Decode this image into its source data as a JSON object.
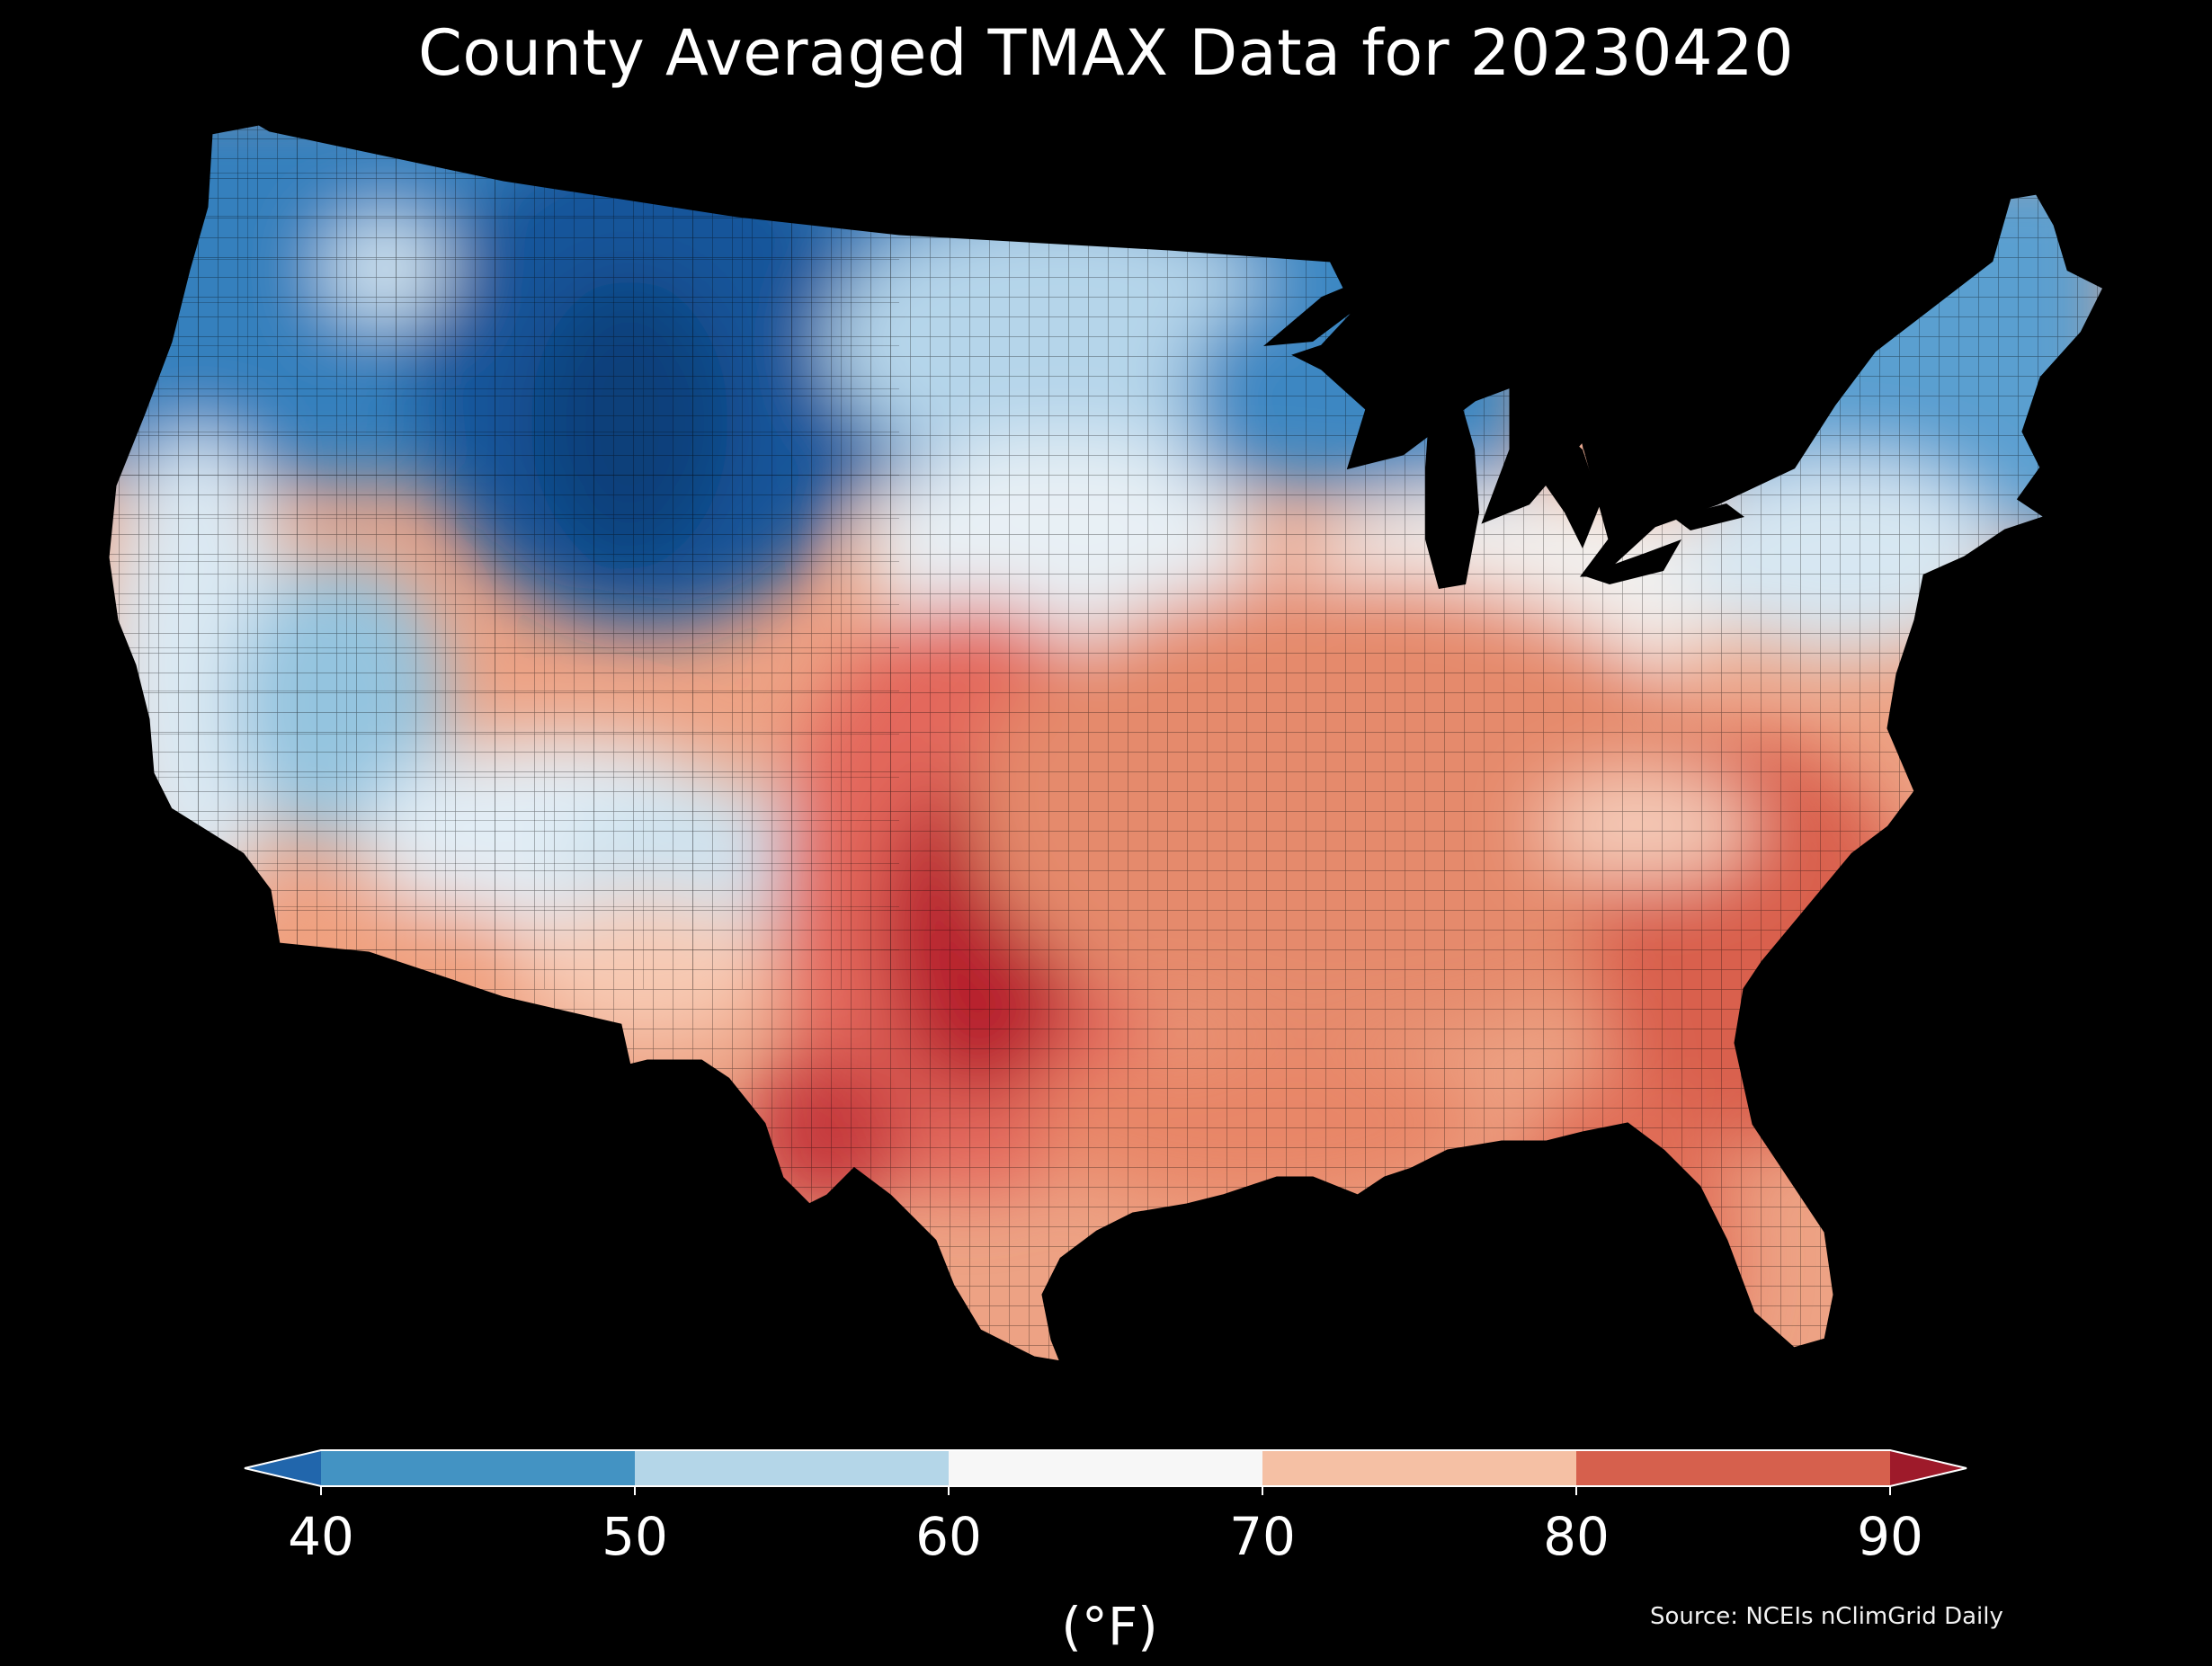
{
  "title": "County Averaged TMAX Data for 20230420",
  "colorbar": {
    "ticks": [
      "40",
      "50",
      "60",
      "70",
      "80",
      "90"
    ],
    "bins": [
      {
        "range": "<40",
        "color": "#2166ac"
      },
      {
        "range": "40-50",
        "color": "#4393c3"
      },
      {
        "range": "50-60",
        "color": "#b4d6e8"
      },
      {
        "range": "60-70",
        "color": "#f7f7f7"
      },
      {
        "range": "70-80",
        "color": "#f5c0a4"
      },
      {
        "range": "80-90",
        "color": "#d6604d"
      },
      {
        "range": ">90",
        "color": "#9e1a2a"
      }
    ],
    "unit": "(°F)"
  },
  "source": "Source: NCEIs nClimGrid Daily",
  "map_colors": {
    "northwest_cold": "#2f78b8",
    "rockies_coldest": "#0d3f7a",
    "northern_plains": "#3d8ac4",
    "california_coast": "#dbe9f3",
    "central_plains": "#e4eef5",
    "texas_hot": "#c8303a",
    "southeast": "#e27a62",
    "midwest": "#eda284",
    "northeast": "#4a90c8"
  }
}
